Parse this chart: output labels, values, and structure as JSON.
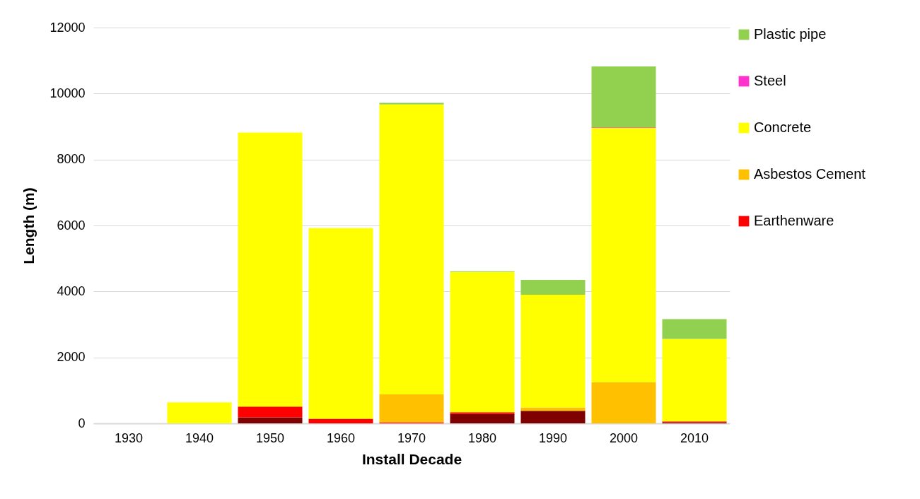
{
  "chart_data": {
    "type": "bar",
    "stacked": true,
    "xlabel": "Install Decade",
    "ylabel": "Length (m)",
    "categories": [
      "1930",
      "1940",
      "1950",
      "1960",
      "1970",
      "1980",
      "1990",
      "2000",
      "2010"
    ],
    "series": [
      {
        "color": "#7f0000",
        "values": [
          0,
          0,
          180,
          0,
          0,
          290,
          380,
          0,
          30
        ]
      },
      {
        "name": "Earthenware",
        "color": "#ff0000",
        "values": [
          0,
          0,
          330,
          140,
          30,
          50,
          0,
          0,
          30
        ]
      },
      {
        "name": "Asbestos Cement",
        "color": "#ffc000",
        "values": [
          0,
          0,
          0,
          0,
          850,
          0,
          100,
          1250,
          0
        ]
      },
      {
        "name": "Concrete",
        "color": "#ffff00",
        "values": [
          0,
          640,
          8310,
          5780,
          8790,
          4250,
          3420,
          7710,
          2500
        ]
      },
      {
        "name": "Steel",
        "color": "#ff33cc",
        "values": [
          0,
          0,
          0,
          0,
          0,
          0,
          0,
          20,
          0
        ]
      },
      {
        "name": "Plastic pipe",
        "color": "#92d050",
        "values": [
          0,
          0,
          0,
          0,
          50,
          20,
          450,
          1840,
          600
        ]
      }
    ],
    "ylim": [
      0,
      12000
    ],
    "yticks": [
      0,
      2000,
      4000,
      6000,
      8000,
      10000,
      12000
    ],
    "grid": "y",
    "legend": "right"
  }
}
